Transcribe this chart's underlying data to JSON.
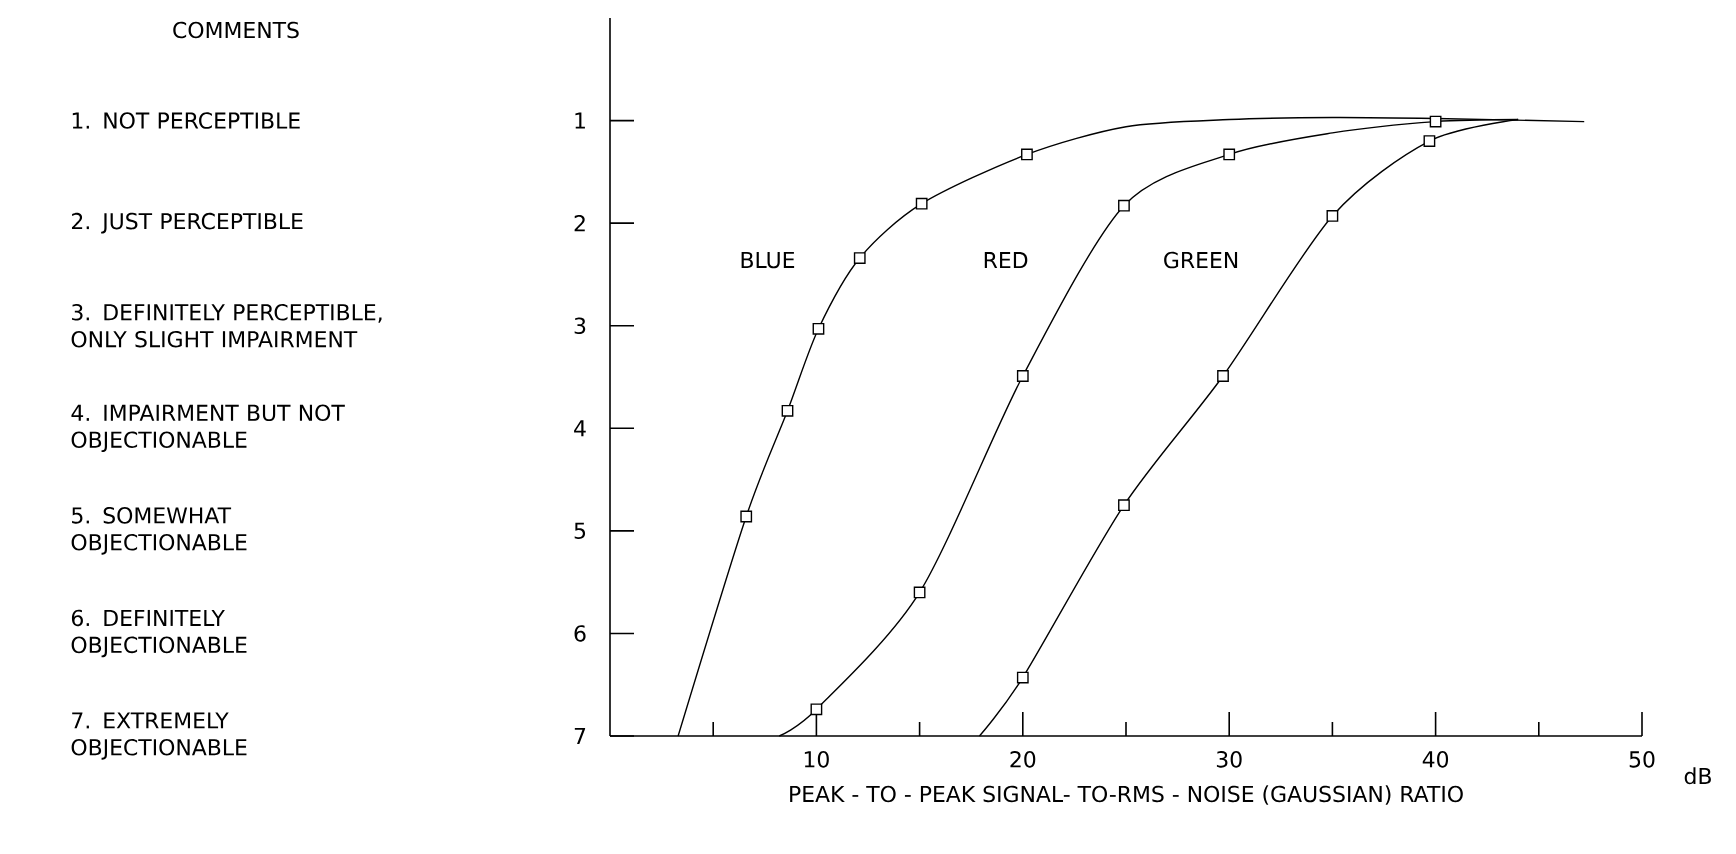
{
  "chart_data": {
    "type": "line",
    "xlabel": "PEAK - TO - PEAK SIGNAL- TO-RMS - NOISE (GAUSSIAN) RATIO",
    "annotations": [
      "COMMENTS",
      "1. NOT PERCEPTIBLE",
      "2. JUST PERCEPTIBLE",
      "3. DEFINITELY PERCEPTIBLE, ONLY SLIGHT IMPAIRMENT",
      "4. IMPAIRMENT BUT NOT OBJECTIONABLE",
      "5. SOMEWHAT OBJECTIONABLE",
      "6. DEFINITELY OBJECTIONABLE",
      "7. EXTREMELY OBJECTIONABLE",
      "dB"
    ],
    "xlim": [
      0,
      50
    ],
    "ylim": [
      7,
      0
    ],
    "xticks": [
      {
        "value": 5,
        "label": null
      },
      10,
      {
        "value": 15,
        "label": null
      },
      20,
      {
        "value": 25,
        "label": null
      },
      30,
      {
        "value": 35,
        "label": null
      },
      40,
      {
        "value": 45,
        "label": null
      },
      50
    ],
    "yticks": [
      1,
      2,
      3,
      4,
      5,
      6,
      7
    ],
    "series": [
      {
        "name": "BLUE",
        "marker": "none",
        "color": "#000000",
        "x": [
          3.3,
          6.6,
          8.6,
          10.1,
          12.1,
          15.1,
          20.2,
          25,
          30,
          35,
          40,
          47.2
        ],
        "values": [
          7,
          4.86,
          3.83,
          3.03,
          2.34,
          1.81,
          1.33,
          1.06,
          0.99,
          0.97,
          0.98,
          1.01
        ]
      },
      {
        "name": "RED",
        "marker": "none",
        "color": "#000000",
        "x": [
          8.2,
          10,
          15,
          20,
          24.9,
          30,
          35,
          40,
          44
        ],
        "values": [
          7,
          6.74,
          5.6,
          3.49,
          1.83,
          1.33,
          1.12,
          1.01,
          0.99
        ]
      },
      {
        "name": "GREEN",
        "marker": "none",
        "color": "#000000",
        "x": [
          17.9,
          20,
          24.9,
          29.7,
          35,
          39.7,
          44
        ],
        "values": [
          7,
          6.43,
          4.75,
          3.49,
          1.93,
          1.2,
          0.99
        ]
      },
      {
        "type": "scatter",
        "marker": "square",
        "color": "#000000",
        "x": [
          6.6,
          8.6,
          10.1,
          12.1,
          15.1,
          20.2
        ],
        "values": [
          4.86,
          3.83,
          3.03,
          2.34,
          1.81,
          1.33
        ]
      },
      {
        "type": "scatter",
        "marker": "square",
        "color": "#000000",
        "x": [
          10,
          15,
          20,
          24.9,
          30,
          40
        ],
        "values": [
          6.74,
          5.6,
          3.49,
          1.83,
          1.33,
          1.01
        ]
      },
      {
        "type": "scatter",
        "marker": "square",
        "color": "#000000",
        "x": [
          20,
          24.9,
          29.7,
          35,
          39.7
        ],
        "values": [
          6.43,
          4.75,
          3.49,
          1.93,
          1.2
        ]
      }
    ]
  }
}
